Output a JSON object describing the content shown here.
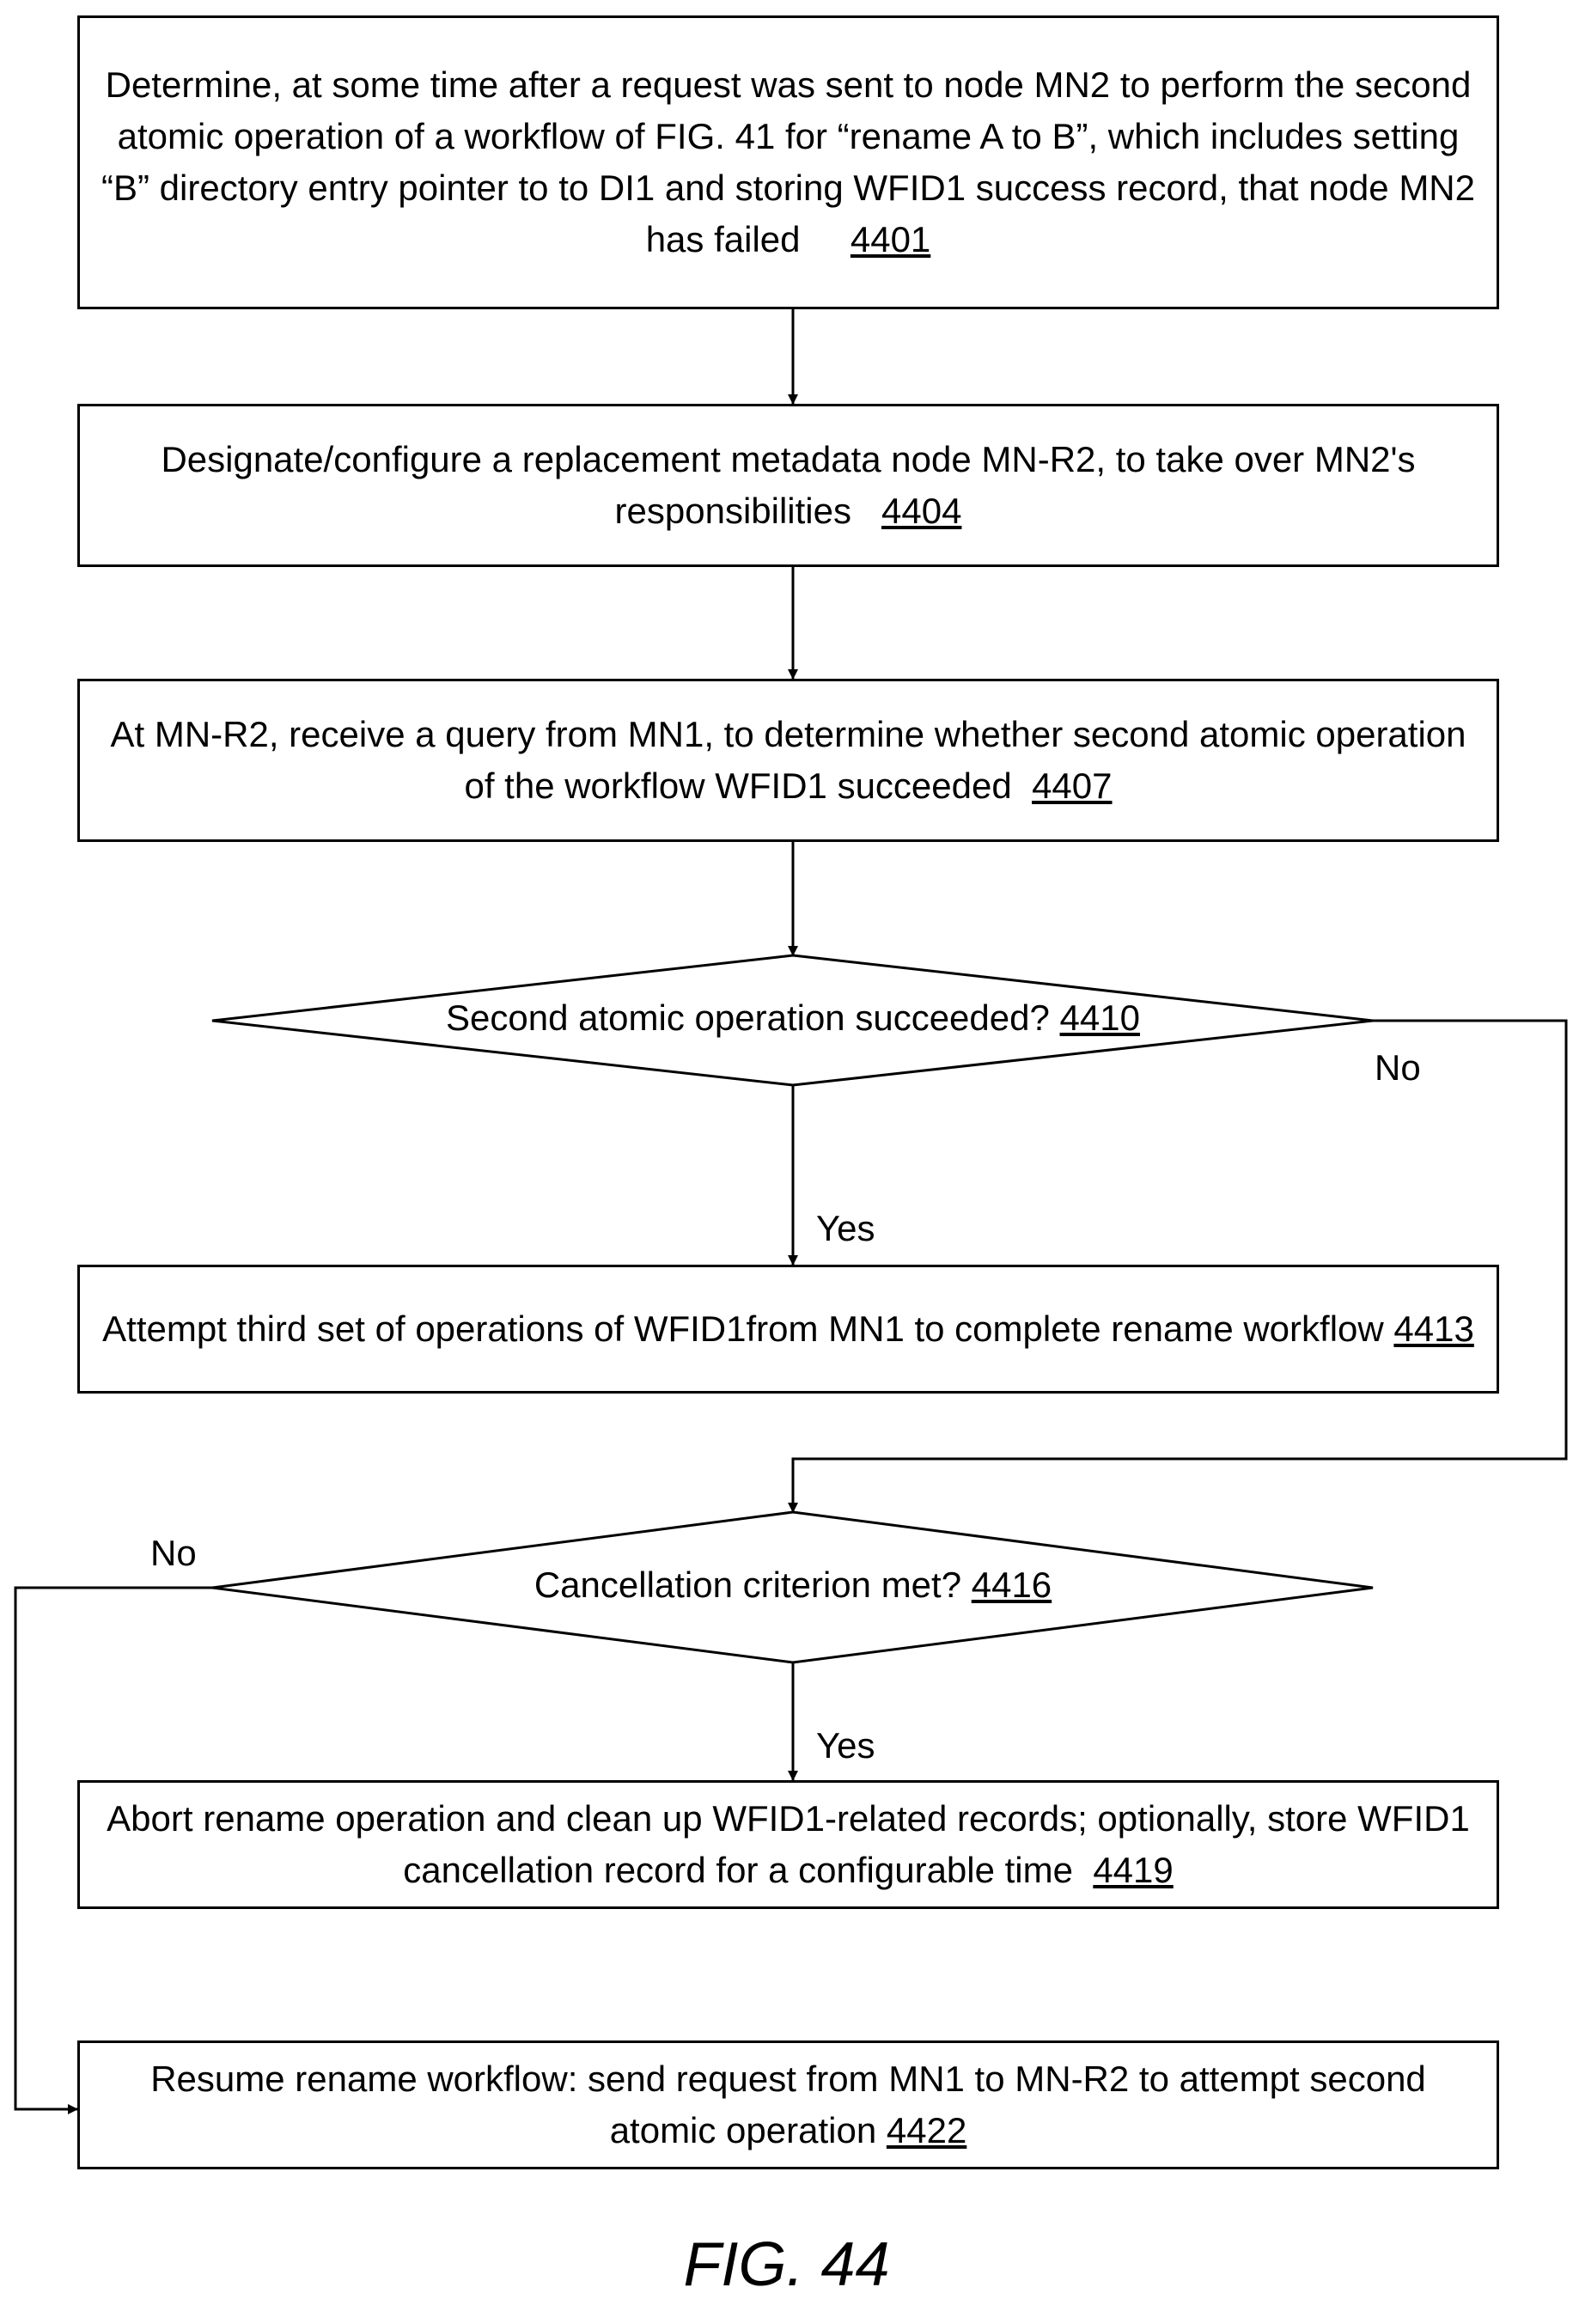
{
  "steps": {
    "s4401": {
      "text": "Determine, at some time after a request was sent to node MN2 to perform the second atomic operation of a workflow of FIG. 41 for “rename A to B”, which includes setting “B” directory entry pointer to to DI1 and storing WFID1 success record, that node MN2 has failed",
      "ref": "4401"
    },
    "s4404": {
      "text": "Designate/configure a replacement metadata node MN-R2, to take over MN2's responsibilities",
      "ref": "4404"
    },
    "s4407": {
      "text": "At MN-R2, receive a query from MN1, to determine whether second atomic operation of the workflow WFID1 succeeded",
      "ref": "4407"
    },
    "d4410": {
      "text": "Second atomic operation succeeded?",
      "ref": "4410"
    },
    "s4413": {
      "text": "Attempt third set of operations of WFID1from MN1 to complete rename workflow",
      "ref": "4413"
    },
    "d4416": {
      "text": "Cancellation criterion met?",
      "ref": "4416"
    },
    "s4419": {
      "text": "Abort rename operation and clean up WFID1-related records; optionally, store WFID1 cancellation record for a configurable time",
      "ref": "4419"
    },
    "s4422": {
      "text": "Resume rename workflow: send request from MN1 to MN-R2 to attempt second atomic operation",
      "ref": "4422"
    }
  },
  "labels": {
    "yes1": "Yes",
    "no1": "No",
    "yes2": "Yes",
    "no2": "No"
  },
  "figure_caption": "FIG. 44"
}
